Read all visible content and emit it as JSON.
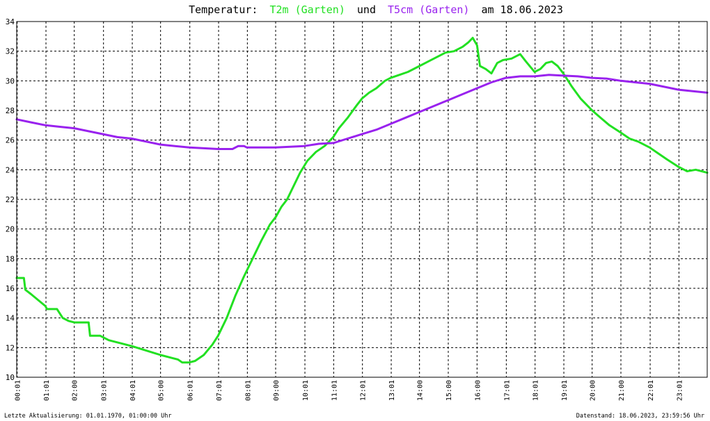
{
  "title": {
    "prefix": "Temperatur:",
    "series1_label": "T2m (Garten)",
    "middle": "und",
    "series2_label": "T5cm (Garten)",
    "suffix": "am 18.06.2023"
  },
  "footer": {
    "left": "Letzte Aktualisierung: 01.01.1970, 01:00:00 Uhr",
    "right": "Datenstand: 18.06.2023, 23:59:56 Uhr"
  },
  "colors": {
    "t2m": "#22e022",
    "t5cm": "#9922ee",
    "grid": "#000000",
    "background": "#ffffff"
  },
  "chart_data": {
    "type": "line",
    "x_unit": "hours",
    "xlim": [
      0,
      24
    ],
    "ylim": [
      10,
      34
    ],
    "grid": true,
    "y_ticks": [
      10,
      12,
      14,
      16,
      18,
      20,
      22,
      24,
      26,
      28,
      30,
      32,
      34
    ],
    "x_tick_labels": [
      "00:01",
      "01:01",
      "02:00",
      "03:01",
      "04:01",
      "05:00",
      "06:01",
      "07:01",
      "08:01",
      "09:00",
      "10:01",
      "11:01",
      "12:01",
      "13:01",
      "14:00",
      "15:00",
      "16:00",
      "17:01",
      "18:01",
      "19:01",
      "20:00",
      "21:00",
      "22:01",
      "23:01"
    ],
    "x_tick_hours": [
      0.017,
      1.017,
      2.0,
      3.017,
      4.017,
      5.0,
      6.017,
      7.017,
      8.017,
      9.0,
      10.017,
      11.017,
      12.017,
      13.017,
      14.0,
      15.0,
      16.0,
      17.017,
      18.017,
      19.017,
      20.0,
      21.0,
      22.017,
      23.017
    ],
    "series": [
      {
        "name": "T2m (Garten)",
        "color_key": "t2m",
        "x": [
          0.0,
          0.25,
          0.3,
          0.5,
          1.0,
          1.05,
          1.4,
          1.6,
          1.8,
          2.0,
          2.4,
          2.5,
          2.55,
          2.65,
          2.9,
          3.2,
          3.6,
          4.0,
          4.5,
          5.0,
          5.4,
          5.6,
          5.75,
          6.0,
          6.2,
          6.5,
          6.8,
          7.0,
          7.3,
          7.6,
          7.9,
          8.2,
          8.5,
          8.8,
          9.0,
          9.2,
          9.4,
          9.6,
          9.85,
          10.1,
          10.4,
          10.7,
          11.0,
          11.2,
          11.5,
          11.8,
          12.0,
          12.25,
          12.5,
          12.8,
          13.0,
          13.3,
          13.6,
          14.0,
          14.3,
          14.6,
          14.9,
          15.2,
          15.5,
          15.7,
          15.85,
          16.0,
          16.1,
          16.3,
          16.5,
          16.7,
          16.9,
          17.2,
          17.5,
          17.7,
          18.0,
          18.2,
          18.4,
          18.6,
          18.8,
          19.0,
          19.3,
          19.6,
          20.0,
          20.3,
          20.6,
          21.0,
          21.3,
          21.6,
          22.0,
          22.3,
          22.6,
          23.0,
          23.3,
          23.6,
          24.0
        ],
        "y": [
          16.7,
          16.7,
          15.9,
          15.6,
          14.8,
          14.6,
          14.6,
          14.0,
          13.8,
          13.7,
          13.7,
          13.7,
          12.8,
          12.8,
          12.8,
          12.5,
          12.3,
          12.1,
          11.8,
          11.5,
          11.3,
          11.2,
          11.0,
          11.0,
          11.1,
          11.5,
          12.2,
          12.8,
          14.0,
          15.5,
          16.8,
          18.0,
          19.2,
          20.3,
          20.8,
          21.5,
          22.0,
          22.8,
          23.8,
          24.6,
          25.2,
          25.6,
          26.2,
          26.8,
          27.5,
          28.3,
          28.8,
          29.2,
          29.5,
          30.0,
          30.2,
          30.4,
          30.6,
          31.0,
          31.3,
          31.6,
          31.9,
          32.0,
          32.3,
          32.6,
          32.9,
          32.4,
          31.0,
          30.8,
          30.5,
          31.2,
          31.4,
          31.5,
          31.8,
          31.3,
          30.6,
          30.8,
          31.2,
          31.3,
          31.0,
          30.5,
          29.6,
          28.8,
          28.0,
          27.5,
          27.0,
          26.5,
          26.1,
          25.9,
          25.5,
          25.1,
          24.7,
          24.2,
          23.9,
          24.0,
          23.8
        ]
      },
      {
        "name": "T5cm (Garten)",
        "color_key": "t5cm",
        "x": [
          0.0,
          0.5,
          1.0,
          1.5,
          2.0,
          2.5,
          3.0,
          3.5,
          4.0,
          4.5,
          5.0,
          5.5,
          6.0,
          6.5,
          7.0,
          7.5,
          7.7,
          7.9,
          8.0,
          8.5,
          9.0,
          9.5,
          10.0,
          10.5,
          11.0,
          11.5,
          12.0,
          12.5,
          13.0,
          13.5,
          14.0,
          14.5,
          15.0,
          15.5,
          16.0,
          16.5,
          17.0,
          17.5,
          18.0,
          18.5,
          19.0,
          19.5,
          20.0,
          20.5,
          21.0,
          21.5,
          22.0,
          22.5,
          23.0,
          23.5,
          24.0
        ],
        "y": [
          27.4,
          27.2,
          27.0,
          26.9,
          26.8,
          26.6,
          26.4,
          26.2,
          26.1,
          25.9,
          25.7,
          25.6,
          25.5,
          25.45,
          25.4,
          25.4,
          25.6,
          25.6,
          25.5,
          25.5,
          25.5,
          25.55,
          25.6,
          25.75,
          25.8,
          26.1,
          26.4,
          26.7,
          27.1,
          27.5,
          27.9,
          28.3,
          28.7,
          29.1,
          29.5,
          29.9,
          30.2,
          30.3,
          30.3,
          30.4,
          30.35,
          30.3,
          30.2,
          30.15,
          30.0,
          29.9,
          29.8,
          29.6,
          29.4,
          29.3,
          29.2
        ]
      }
    ]
  }
}
